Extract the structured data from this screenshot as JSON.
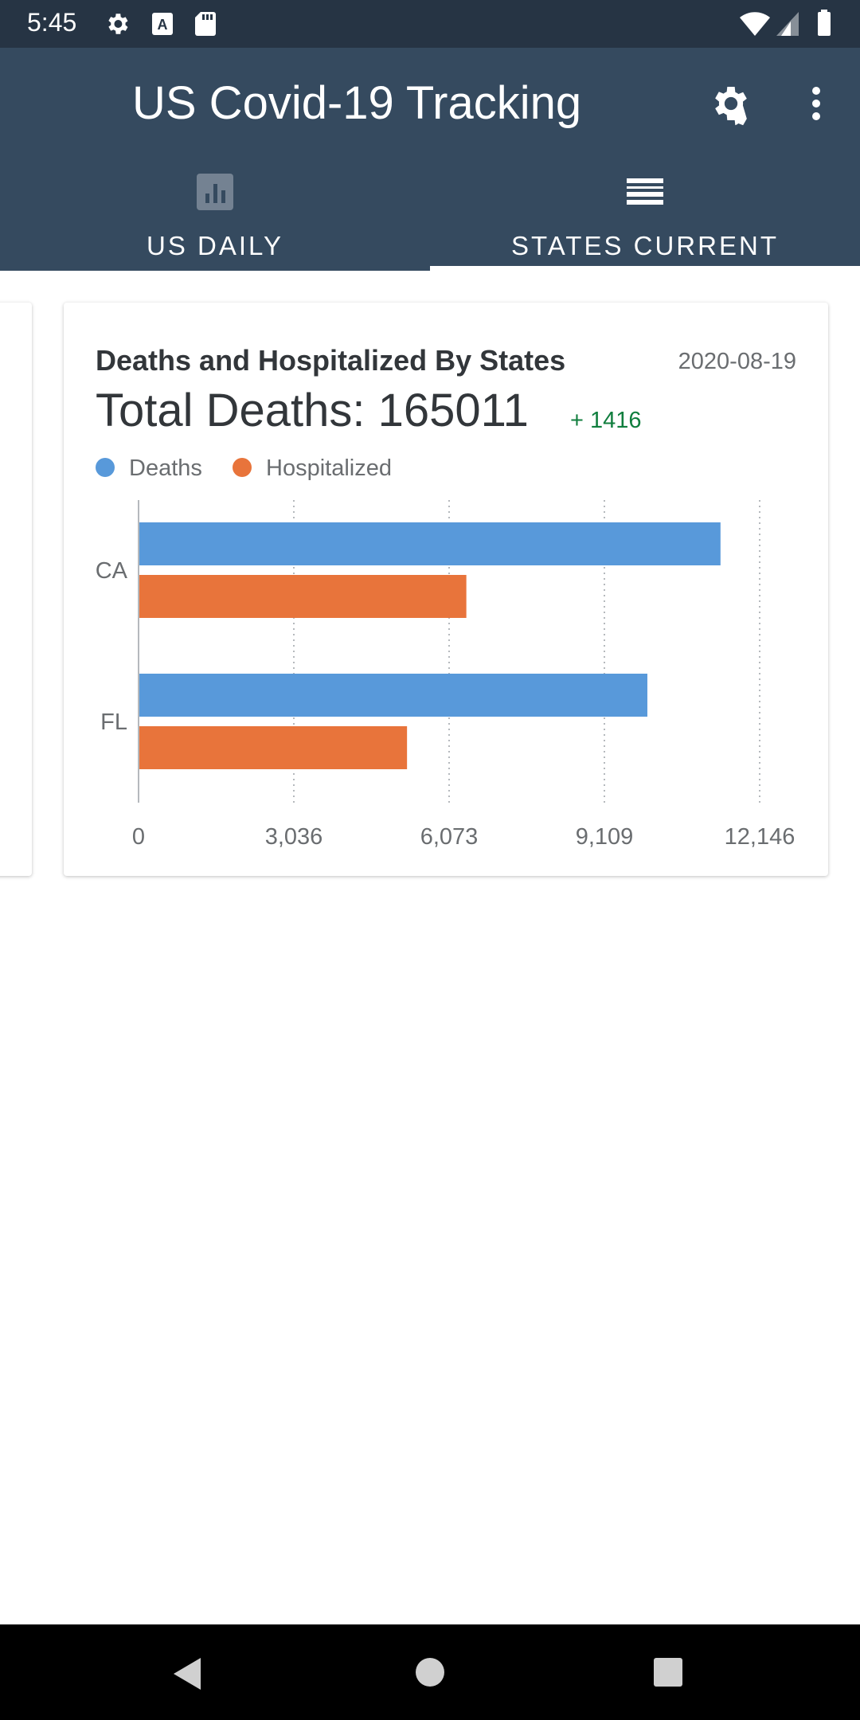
{
  "status_bar": {
    "time": "5:45",
    "icons": [
      "gear-icon",
      "font-a-icon",
      "sd-card-icon",
      "wifi-icon",
      "signal-icon",
      "battery-icon"
    ]
  },
  "app_bar": {
    "title": "US Covid-19 Tracking",
    "actions": [
      "settings-icon",
      "more-vert-icon"
    ],
    "tabs": [
      {
        "label": "US DAILY",
        "icon": "bar-chart-icon",
        "selected": false
      },
      {
        "label": "STATES CURRENT",
        "icon": "list-icon",
        "selected": true
      }
    ]
  },
  "card": {
    "title": "Deaths and Hospitalized By States",
    "date": "2020-08-19",
    "total_deaths": "Total Deaths: 165011",
    "delta": "+ 1416"
  },
  "colors": {
    "deaths": "#5899da",
    "hospitalized": "#e8743b",
    "delta": "#107e3e",
    "app_bar": "#354a5f",
    "status_bar": "#263444"
  },
  "chart_data": {
    "type": "bar",
    "orientation": "horizontal",
    "categories": [
      "CA",
      "FL"
    ],
    "series": [
      {
        "name": "Deaths",
        "values": [
          11380,
          9950
        ]
      },
      {
        "name": "Hospitalized",
        "values": [
          6410,
          5250
        ]
      }
    ],
    "x_ticks": [
      "0",
      "3,036",
      "6,073",
      "9,109",
      "12,146"
    ],
    "xlim": [
      0,
      12146
    ],
    "grid": "vertical-dotted",
    "legend": "top-left"
  },
  "nav_bar": {
    "buttons": [
      "back-icon",
      "home-icon",
      "recents-icon"
    ]
  }
}
